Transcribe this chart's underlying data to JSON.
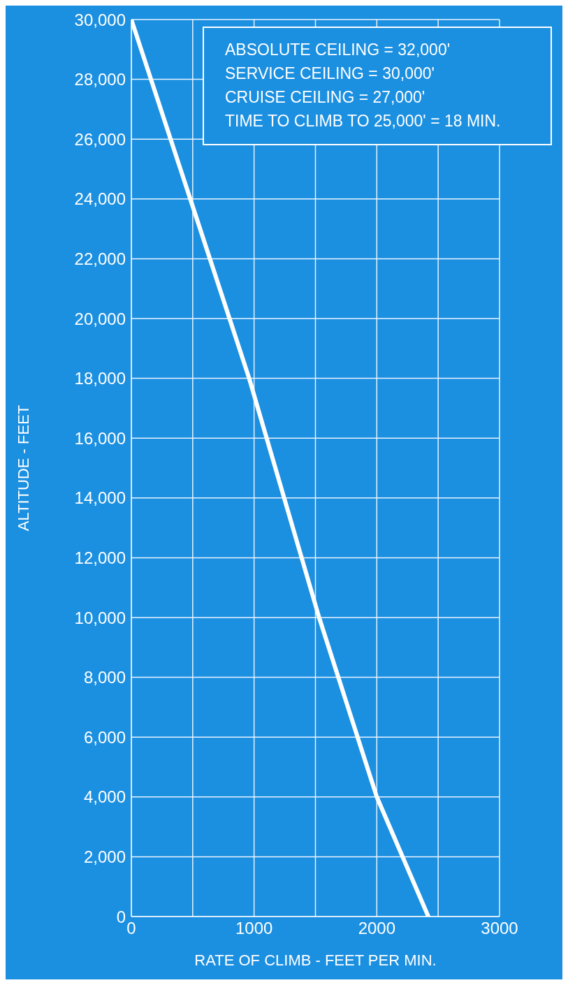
{
  "chart_data": {
    "type": "line",
    "xlabel": "RATE OF CLIMB - FEET PER MIN.",
    "ylabel": "ALTITUDE - FEET",
    "annotations": [
      "ABSOLUTE CEILING = 32,000'",
      "SERVICE CEILING = 30,000'",
      "CRUISE CEILING = 27,000'",
      "TIME TO CLIMB TO 25,000' = 18 MIN."
    ],
    "series": [
      {
        "color": "#ffffff",
        "x": [
          2420,
          2000,
          1530,
          960,
          480,
          0
        ],
        "values": [
          0,
          4000,
          10000,
          18000,
          24000,
          30000
        ]
      }
    ],
    "xlim": [
      0,
      3000
    ],
    "xticks": [
      0,
      {
        "value": 500,
        "label": null
      },
      1000,
      {
        "value": 1500,
        "label": null
      },
      2000,
      {
        "value": 2500,
        "label": null
      },
      3000
    ],
    "ylim": [
      0,
      30000
    ],
    "yticks": [
      {
        "value": 0,
        "label": "0"
      },
      {
        "value": 2000,
        "label": "2,000"
      },
      {
        "value": 4000,
        "label": "4,000"
      },
      {
        "value": 6000,
        "label": "6,000"
      },
      {
        "value": 8000,
        "label": "8,000"
      },
      {
        "value": 10000,
        "label": "10,000"
      },
      {
        "value": 12000,
        "label": "12,000"
      },
      {
        "value": 14000,
        "label": "14,000"
      },
      {
        "value": 16000,
        "label": "16,000"
      },
      {
        "value": 18000,
        "label": "18,000"
      },
      {
        "value": 20000,
        "label": "20,000"
      },
      {
        "value": 22000,
        "label": "22,000"
      },
      {
        "value": 24000,
        "label": "24,000"
      },
      {
        "value": 26000,
        "label": "26,000"
      },
      {
        "value": 28000,
        "label": "28,000"
      },
      {
        "value": 30000,
        "label": "30,000"
      }
    ],
    "grid": true,
    "marker": "none",
    "line_style": "solid"
  }
}
